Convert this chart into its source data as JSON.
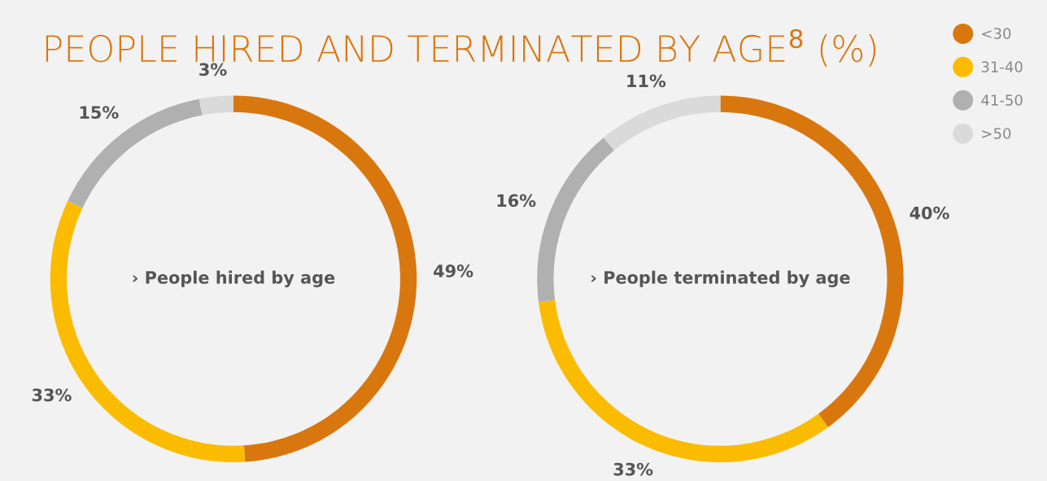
{
  "chart_data": [
    {
      "type": "donut",
      "title": "› People hired by age",
      "annotations": [
        "PEOPLE HIRED AND TERMINATED BY AGE$^{8}$ (%)"
      ],
      "categories": [
        "<30",
        "31-40",
        "41-50",
        ">50"
      ],
      "values": [
        49,
        33,
        15,
        3
      ],
      "value_labels": [
        "49%",
        "33%",
        "15%",
        "3%"
      ],
      "colors": [
        "#d9770f",
        "#fbbc00",
        "#b0b0b0",
        "#dadada"
      ],
      "legend": "top right"
    },
    {
      "type": "donut",
      "title": "› People terminated by age",
      "categories": [
        null,
        null,
        null,
        null
      ],
      "values": [
        40,
        33,
        16,
        11
      ],
      "value_labels": [
        "40%",
        "33%",
        "16%",
        "11%"
      ],
      "colors": [
        "#d9770f",
        "#fbbc00",
        "#b0b0b0",
        "#dadada"
      ]
    }
  ]
}
